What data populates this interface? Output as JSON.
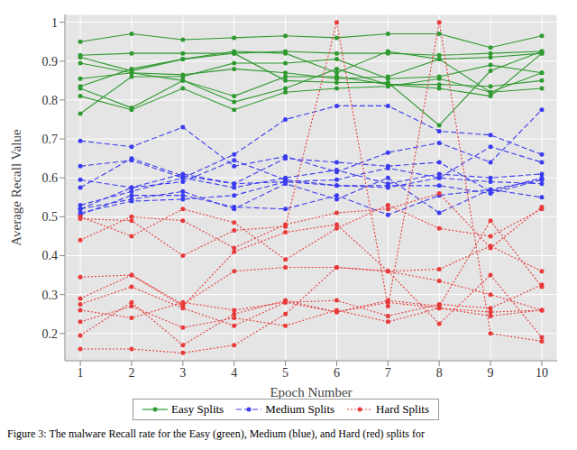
{
  "chart_data": {
    "type": "line",
    "caption": "Figure 3: The malware Recall rate for the Easy (green), Medium (blue), and Hard (red) splits for",
    "x_label": "Epoch Number",
    "y_label": "Average Recall Value",
    "x": [
      1,
      2,
      3,
      4,
      5,
      6,
      7,
      8,
      9,
      10
    ],
    "xlim": [
      0.7,
      10.3
    ],
    "xticks": [
      1,
      2,
      3,
      4,
      5,
      6,
      7,
      8,
      9,
      10
    ],
    "ylim": [
      0.13,
      1.02
    ],
    "yticks": [
      0.2,
      0.3,
      0.4,
      0.5,
      0.6,
      0.7,
      0.8,
      0.9,
      1
    ],
    "grid": true,
    "legend": "bottom",
    "series": [
      {
        "name": "Easy Splits",
        "color": "#2f9a2f",
        "line_style": "solid",
        "marker": "circle",
        "values": [
          0.95,
          0.97,
          0.955,
          0.96,
          0.965,
          0.96,
          0.97,
          0.97,
          0.935,
          0.965
        ]
      },
      {
        "name": "Easy Splits",
        "color": "#2f9a2f",
        "line_style": "solid",
        "marker": "circle",
        "values": [
          0.915,
          0.92,
          0.92,
          0.92,
          0.925,
          0.92,
          0.92,
          0.915,
          0.92,
          0.925
        ]
      },
      {
        "name": "Easy Splits",
        "color": "#2f9a2f",
        "line_style": "solid",
        "marker": "circle",
        "values": [
          0.91,
          0.875,
          0.905,
          0.925,
          0.92,
          0.87,
          0.925,
          0.905,
          0.91,
          0.92
        ]
      },
      {
        "name": "Easy Splits",
        "color": "#2f9a2f",
        "line_style": "solid",
        "marker": "circle",
        "values": [
          0.895,
          0.87,
          0.865,
          0.88,
          0.87,
          0.855,
          0.86,
          0.905,
          0.82,
          0.83
        ]
      },
      {
        "name": "Easy Splits",
        "color": "#2f9a2f",
        "line_style": "solid",
        "marker": "circle",
        "values": [
          0.855,
          0.87,
          0.85,
          0.81,
          0.86,
          0.86,
          0.84,
          0.84,
          0.835,
          0.85
        ]
      },
      {
        "name": "Easy Splits",
        "color": "#2f9a2f",
        "line_style": "solid",
        "marker": "circle",
        "values": [
          0.835,
          0.88,
          0.905,
          0.92,
          0.85,
          0.845,
          0.845,
          0.735,
          0.875,
          0.925
        ]
      },
      {
        "name": "Easy Splits",
        "color": "#2f9a2f",
        "line_style": "solid",
        "marker": "circle",
        "values": [
          0.83,
          0.78,
          0.85,
          0.795,
          0.83,
          0.88,
          0.84,
          0.83,
          0.81,
          0.92
        ]
      },
      {
        "name": "Easy Splits",
        "color": "#2f9a2f",
        "line_style": "solid",
        "marker": "circle",
        "values": [
          0.81,
          0.775,
          0.83,
          0.775,
          0.82,
          0.83,
          0.835,
          0.855,
          0.82,
          0.87
        ]
      },
      {
        "name": "Easy Splits",
        "color": "#2f9a2f",
        "line_style": "solid",
        "marker": "circle",
        "values": [
          0.765,
          0.86,
          0.86,
          0.895,
          0.895,
          0.905,
          0.855,
          0.86,
          0.89,
          0.87
        ]
      },
      {
        "name": "Medium Splits",
        "color": "#3b3bf0",
        "line_style": "dashed",
        "marker": "circle",
        "values": [
          0.695,
          0.68,
          0.73,
          0.63,
          0.655,
          0.615,
          0.665,
          0.69,
          0.64,
          0.775
        ]
      },
      {
        "name": "Medium Splits",
        "color": "#3b3bf0",
        "line_style": "dashed",
        "marker": "circle",
        "values": [
          0.63,
          0.645,
          0.6,
          0.66,
          0.75,
          0.785,
          0.785,
          0.72,
          0.71,
          0.66
        ]
      },
      {
        "name": "Medium Splits",
        "color": "#3b3bf0",
        "line_style": "dashed",
        "marker": "circle",
        "values": [
          0.595,
          0.575,
          0.61,
          0.585,
          0.65,
          0.64,
          0.63,
          0.64,
          0.565,
          0.6
        ]
      },
      {
        "name": "Medium Splits",
        "color": "#3b3bf0",
        "line_style": "dashed",
        "marker": "circle",
        "values": [
          0.575,
          0.65,
          0.605,
          0.585,
          0.59,
          0.595,
          0.625,
          0.6,
          0.68,
          0.64
        ]
      },
      {
        "name": "Medium Splits",
        "color": "#3b3bf0",
        "line_style": "dashed",
        "marker": "circle",
        "values": [
          0.53,
          0.565,
          0.6,
          0.575,
          0.6,
          0.62,
          0.585,
          0.61,
          0.6,
          0.61
        ]
      },
      {
        "name": "Medium Splits",
        "color": "#3b3bf0",
        "line_style": "dashed",
        "marker": "circle",
        "values": [
          0.52,
          0.575,
          0.59,
          0.645,
          0.595,
          0.58,
          0.58,
          0.58,
          0.56,
          0.595
        ]
      },
      {
        "name": "Medium Splits",
        "color": "#3b3bf0",
        "line_style": "dashed",
        "marker": "circle",
        "values": [
          0.51,
          0.54,
          0.545,
          0.555,
          0.59,
          0.58,
          0.575,
          0.6,
          0.59,
          0.585
        ]
      },
      {
        "name": "Medium Splits",
        "color": "#3b3bf0",
        "line_style": "dashed",
        "marker": "circle",
        "values": [
          0.505,
          0.555,
          0.555,
          0.525,
          0.52,
          0.555,
          0.505,
          0.555,
          0.57,
          0.595
        ]
      },
      {
        "name": "Medium Splits",
        "color": "#3b3bf0",
        "line_style": "dashed",
        "marker": "circle",
        "values": [
          0.52,
          0.545,
          0.565,
          0.52,
          0.585,
          0.545,
          0.6,
          0.51,
          0.57,
          0.55
        ]
      },
      {
        "name": "Hard Splits",
        "color": "#e83a3a",
        "line_style": "dotted",
        "marker": "circle",
        "values": [
          0.5,
          0.45,
          0.52,
          0.485,
          0.39,
          0.47,
          0.53,
          0.47,
          0.45,
          0.52
        ]
      },
      {
        "name": "Hard Splits",
        "color": "#e83a3a",
        "line_style": "dotted",
        "marker": "circle",
        "values": [
          0.495,
          0.49,
          0.4,
          0.465,
          0.475,
          1.0,
          0.27,
          1.0,
          0.2,
          0.18
        ]
      },
      {
        "name": "Hard Splits",
        "color": "#e83a3a",
        "line_style": "dotted",
        "marker": "circle",
        "values": [
          0.44,
          0.5,
          0.49,
          0.42,
          0.48,
          0.51,
          0.52,
          0.56,
          0.42,
          0.525
        ]
      },
      {
        "name": "Hard Splits",
        "color": "#e83a3a",
        "line_style": "dotted",
        "marker": "circle",
        "values": [
          0.345,
          0.35,
          0.275,
          0.36,
          0.37,
          0.37,
          0.36,
          0.335,
          0.3,
          0.26
        ]
      },
      {
        "name": "Hard Splits",
        "color": "#e83a3a",
        "line_style": "dotted",
        "marker": "circle",
        "values": [
          0.29,
          0.35,
          0.27,
          0.41,
          0.46,
          0.48,
          0.36,
          0.365,
          0.425,
          0.36
        ]
      },
      {
        "name": "Hard Splits",
        "color": "#e83a3a",
        "line_style": "dotted",
        "marker": "circle",
        "values": [
          0.275,
          0.32,
          0.265,
          0.22,
          0.28,
          0.285,
          0.245,
          0.275,
          0.265,
          0.325
        ]
      },
      {
        "name": "Hard Splits",
        "color": "#e83a3a",
        "line_style": "dotted",
        "marker": "circle",
        "values": [
          0.26,
          0.24,
          0.28,
          0.26,
          0.28,
          0.255,
          0.285,
          0.27,
          0.49,
          0.32
        ]
      },
      {
        "name": "Hard Splits",
        "color": "#e83a3a",
        "line_style": "dotted",
        "marker": "circle",
        "values": [
          0.23,
          0.27,
          0.215,
          0.24,
          0.22,
          0.26,
          0.23,
          0.265,
          0.255,
          0.26
        ]
      },
      {
        "name": "Hard Splits",
        "color": "#e83a3a",
        "line_style": "dotted",
        "marker": "circle",
        "values": [
          0.195,
          0.28,
          0.17,
          0.25,
          0.285,
          0.255,
          0.28,
          0.265,
          0.245,
          0.26
        ]
      },
      {
        "name": "Hard Splits",
        "color": "#e83a3a",
        "line_style": "dotted",
        "marker": "circle",
        "values": [
          0.16,
          0.16,
          0.15,
          0.17,
          0.25,
          0.37,
          0.36,
          0.225,
          0.35,
          0.19
        ]
      }
    ]
  }
}
